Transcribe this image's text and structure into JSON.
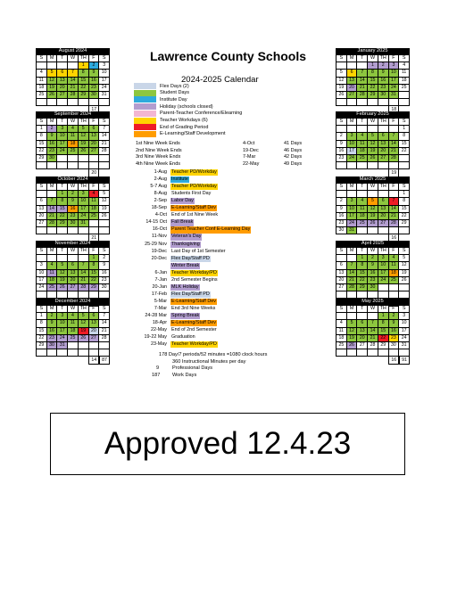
{
  "title": "Lawrence County Schools",
  "subtitle": "2024-2025 Calendar",
  "legend": [
    {
      "label": "Flex Days (2)",
      "color": "#c9d6e8"
    },
    {
      "label": "Student Days",
      "color": "#8dc63f"
    },
    {
      "label": "Institute Day",
      "color": "#2eaadc"
    },
    {
      "label": "Holiday (schools closed)",
      "color": "#b29dcf"
    },
    {
      "label": "Parent-Teacher Conference/Elearning",
      "color": "#f3b6d2"
    },
    {
      "label": "Teacher Workdays (6)",
      "color": "#ffd400"
    },
    {
      "label": "End of Grading Period",
      "color": "#ee1c25"
    },
    {
      "label": "E-Learning/Staff Development",
      "color": "#ff9c00"
    }
  ],
  "nine_weeks": [
    [
      "1st Nine Week Ends",
      "4-Oct",
      "41 Days"
    ],
    [
      "2nd Nine Week Ends",
      "19-Dec",
      "46 Days"
    ],
    [
      "3rd Nine Week Endx",
      "7-Mar",
      "42 Days"
    ],
    [
      "4th Nine Week Ends",
      "22-May",
      "49 Days"
    ]
  ],
  "events": [
    {
      "date": "1-Aug",
      "name": "Teacher PD/Workday",
      "cls": "y"
    },
    {
      "date": "2-Aug",
      "name": "Institute",
      "cls": "b"
    },
    {
      "date": "5-7 Aug",
      "name": "Teacher PD/Workday",
      "cls": "y"
    },
    {
      "date": "8-Aug",
      "name": "Students First Day",
      "cls": ""
    },
    {
      "date": "2-Sep",
      "name": "Labor Day",
      "cls": "p"
    },
    {
      "date": "18-Sep",
      "name": "E-Learning/Staff Dev",
      "cls": "o"
    },
    {
      "date": "4-Oct",
      "name": "End of 1st Nine Week",
      "cls": ""
    },
    {
      "date": "14-15 Oct",
      "name": "Fall Break",
      "cls": "p"
    },
    {
      "date": "16-Oct",
      "name": "Parent Teacher Conf E-Learning Day",
      "cls": "o"
    },
    {
      "date": "11-Nov",
      "name": "Veteran's Day",
      "cls": "p"
    },
    {
      "date": "25-29 Nov",
      "name": "Thanksgiving",
      "cls": "p"
    },
    {
      "date": "19-Dec",
      "name": "Last Day of 1st Semester",
      "cls": ""
    },
    {
      "date": "20-Dec",
      "name": "Flex Day/Staff PD",
      "cls": "l"
    },
    {
      "date": "",
      "name": "Winter Break",
      "cls": "p"
    },
    {
      "date": "6-Jan",
      "name": "Teacher Workday/PD",
      "cls": "y"
    },
    {
      "date": "7-Jan",
      "name": "2nd Semester Begins",
      "cls": ""
    },
    {
      "date": "20-Jan",
      "name": "MLK Holiday",
      "cls": "p"
    },
    {
      "date": "17-Feb",
      "name": "Flex Day/Staff PD",
      "cls": "l"
    },
    {
      "date": "5-Mar",
      "name": "E-Learning/Staff Dev",
      "cls": "o"
    },
    {
      "date": "7-Mar",
      "name": "End 3rd Nine Weeks",
      "cls": ""
    },
    {
      "date": "24-28 Mar",
      "name": "Spring Break",
      "cls": "p"
    },
    {
      "date": "18-Apr",
      "name": "E-Learning/Staff Dev",
      "cls": "o"
    },
    {
      "date": "22-May",
      "name": "End of 2nd Semester",
      "cls": ""
    },
    {
      "date": "19-22 May",
      "name": "Graduation",
      "cls": ""
    },
    {
      "date": "23-May",
      "name": "Teacher Workday/PD",
      "cls": "y"
    }
  ],
  "summary": [
    {
      "num": "",
      "text": "178 Day/7 periods/52 minutes =1080 clock hours"
    },
    {
      "num": "",
      "text": "360 Instructional Minutes per day"
    },
    {
      "num": "9",
      "text": "Professional Days"
    },
    {
      "num": "187",
      "text": "Work Days"
    }
  ],
  "approved": "Approved 12.4.23",
  "day_headers": [
    "S",
    "M",
    "T",
    "W",
    "TH",
    "F",
    "S"
  ],
  "calendars": [
    {
      "name": "August 2024",
      "weeks": [
        [
          "",
          "",
          "",
          "",
          "1|y",
          "2|b",
          "3"
        ],
        [
          "4",
          "5|y",
          "6|y",
          "7|y",
          "8|g",
          "9|g",
          "10"
        ],
        [
          "11",
          "12|g",
          "13|g",
          "14|g",
          "15|g",
          "16|g",
          "17"
        ],
        [
          "18",
          "19|g",
          "20|g",
          "21|g",
          "22|g",
          "23|g",
          "24"
        ],
        [
          "25",
          "26|g",
          "27|g",
          "28|g",
          "29|g",
          "30|g",
          "31"
        ],
        [
          "",
          "",
          "",
          "",
          "",
          "",
          ""
        ]
      ],
      "total": "17"
    },
    {
      "name": "September 2024",
      "weeks": [
        [
          "1",
          "2|p",
          "3|g",
          "4|g",
          "5|g",
          "6|g",
          "7"
        ],
        [
          "8",
          "9|g",
          "10|g",
          "11|g",
          "12|g",
          "13|g",
          "14"
        ],
        [
          "15",
          "16|g",
          "17|g",
          "18|o",
          "19|g",
          "20|g",
          "21"
        ],
        [
          "22",
          "23|g",
          "24|g",
          "25|g",
          "26|g",
          "27|g",
          "28"
        ],
        [
          "29",
          "30|g",
          "",
          "",
          "",
          "",
          ""
        ],
        [
          "",
          "",
          "",
          "",
          "",
          "",
          ""
        ]
      ],
      "total": "20"
    },
    {
      "name": "October 2024",
      "weeks": [
        [
          "",
          "",
          "1|g",
          "2|g",
          "3|g",
          "4|r",
          "5"
        ],
        [
          "6",
          "7|g",
          "8|g",
          "9|g",
          "10|g",
          "11|g",
          "12"
        ],
        [
          "13",
          "14|p",
          "15|p",
          "16|o",
          "17|g",
          "18|g",
          "19"
        ],
        [
          "20",
          "21|g",
          "22|g",
          "23|g",
          "24|g",
          "25|g",
          "26"
        ],
        [
          "27",
          "28|g",
          "29|g",
          "30|g",
          "31|g",
          "",
          ""
        ],
        [
          "",
          "",
          "",
          "",
          "",
          "",
          ""
        ]
      ],
      "total": "21"
    },
    {
      "name": "November 2024",
      "weeks": [
        [
          "",
          "",
          "",
          "",
          "",
          "1|g",
          "2"
        ],
        [
          "3",
          "4|g",
          "5|g",
          "6|g",
          "7|g",
          "8|g",
          "9"
        ],
        [
          "10",
          "11|p",
          "12|g",
          "13|g",
          "14|g",
          "15|g",
          "16"
        ],
        [
          "17",
          "18|g",
          "19|g",
          "20|g",
          "21|g",
          "22|g",
          "23"
        ],
        [
          "24",
          "25|p",
          "26|p",
          "27|p",
          "28|p",
          "29|p",
          "30"
        ],
        [
          "",
          "",
          "",
          "",
          "",
          "",
          ""
        ]
      ],
      "total": "15"
    },
    {
      "name": "December 2024",
      "weeks": [
        [
          "1",
          "2|g",
          "3|g",
          "4|g",
          "5|g",
          "6|g",
          "7"
        ],
        [
          "8",
          "9|g",
          "10|g",
          "11|g",
          "12|g",
          "13|g",
          "14"
        ],
        [
          "15",
          "16|g",
          "17|g",
          "18|g",
          "19|r",
          "20|l",
          "21"
        ],
        [
          "22",
          "23|p",
          "24|p",
          "25|p",
          "26|p",
          "27|p",
          "28"
        ],
        [
          "29",
          "30|p",
          "31|p",
          "",
          "",
          "",
          ""
        ],
        [
          "",
          "",
          "",
          "",
          "",
          "",
          ""
        ]
      ],
      "total": "14"
    },
    {
      "name": "January 2025",
      "weeks": [
        [
          "",
          "",
          "",
          "1|p",
          "2|p",
          "3|p",
          "4"
        ],
        [
          "5",
          "6|y",
          "7|g",
          "8|g",
          "9|g",
          "10|g",
          "11"
        ],
        [
          "12",
          "13|g",
          "14|g",
          "15|g",
          "16|g",
          "17|g",
          "18"
        ],
        [
          "19",
          "20|p",
          "21|g",
          "22|g",
          "23|g",
          "24|g",
          "25"
        ],
        [
          "26",
          "27|g",
          "28|g",
          "29|g",
          "30|g",
          "31|g",
          ""
        ],
        [
          "",
          "",
          "",
          "",
          "",
          "",
          ""
        ]
      ],
      "total": "18"
    },
    {
      "name": "February 2025",
      "weeks": [
        [
          "",
          "",
          "",
          "",
          "",
          "",
          "1"
        ],
        [
          "2",
          "3|g",
          "4|g",
          "5|g",
          "6|g",
          "7|g",
          "8"
        ],
        [
          "9",
          "10|g",
          "11|g",
          "12|g",
          "13|g",
          "14|g",
          "15"
        ],
        [
          "16",
          "17|l",
          "18|g",
          "19|g",
          "20|g",
          "21|g",
          "22"
        ],
        [
          "23",
          "24|g",
          "25|g",
          "26|g",
          "27|g",
          "28|g",
          ""
        ],
        [
          "",
          "",
          "",
          "",
          "",
          "",
          ""
        ]
      ],
      "total": "19"
    },
    {
      "name": "March 2025",
      "weeks": [
        [
          "",
          "",
          "",
          "",
          "",
          "",
          "1"
        ],
        [
          "2",
          "3|g",
          "4|g",
          "5|o",
          "6|g",
          "7|r",
          "8"
        ],
        [
          "9",
          "10|g",
          "11|g",
          "12|g",
          "13|g",
          "14|g",
          "15"
        ],
        [
          "16",
          "17|g",
          "18|g",
          "19|g",
          "20|g",
          "21|g",
          "22"
        ],
        [
          "23",
          "24|p",
          "25|p",
          "26|p",
          "27|p",
          "28|p",
          "29"
        ],
        [
          "30",
          "31|g",
          "",
          "",
          "",
          "",
          ""
        ]
      ],
      "total": "16"
    },
    {
      "name": "April 2025",
      "weeks": [
        [
          "",
          "",
          "1|g",
          "2|g",
          "3|g",
          "4|g",
          "5"
        ],
        [
          "6",
          "7|g",
          "8|g",
          "9|g",
          "10|g",
          "11|g",
          "12"
        ],
        [
          "13",
          "14|g",
          "15|g",
          "16|g",
          "17|g",
          "18|o",
          "19"
        ],
        [
          "20",
          "21|g",
          "22|g",
          "23|g",
          "24|g",
          "25|g",
          "26"
        ],
        [
          "27",
          "28|g",
          "29|g",
          "30|g",
          "",
          "",
          ""
        ],
        [
          "",
          "",
          "",
          "",
          "",
          "",
          ""
        ]
      ],
      "total": "22"
    },
    {
      "name": "May 2025",
      "weeks": [
        [
          "",
          "",
          "",
          "",
          "1|g",
          "2|g",
          "3"
        ],
        [
          "4",
          "5|g",
          "6|g",
          "7|g",
          "8|g",
          "9|g",
          "10"
        ],
        [
          "11",
          "12|g",
          "13|g",
          "14|g",
          "15|g",
          "16|g",
          "17"
        ],
        [
          "18",
          "19|g",
          "20|g",
          "21|g",
          "22|r",
          "23|y",
          "24"
        ],
        [
          "25",
          "26|p",
          "27",
          "28",
          "29",
          "30",
          "31"
        ],
        [
          "",
          "",
          "",
          "",
          "",
          "",
          ""
        ]
      ],
      "total": "16",
      "grand_total": "91"
    }
  ],
  "grand_total_left": "87"
}
